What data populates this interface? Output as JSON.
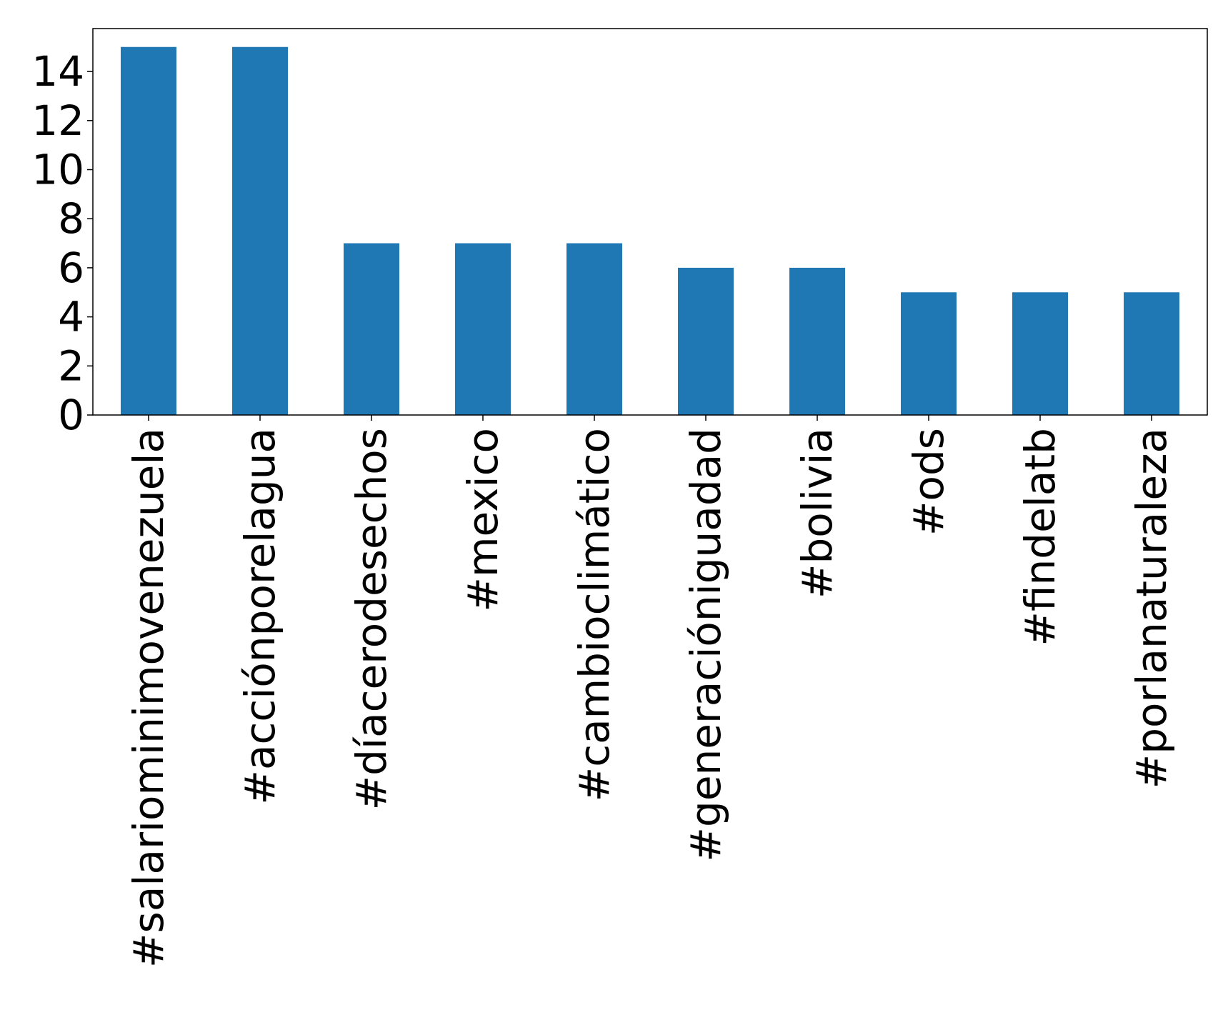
{
  "chart_data": {
    "type": "bar",
    "categories": [
      "#salariominimovenezuela",
      "#acciónporelagua",
      "#díacerodesechos",
      "#mexico",
      "#cambioclimático",
      "#generacióniguadad",
      "#bolivia",
      "#ods",
      "#findelatb",
      "#porlanaturaleza"
    ],
    "values": [
      15,
      15,
      7,
      7,
      7,
      6,
      6,
      5,
      5,
      5
    ],
    "title": "",
    "xlabel": "",
    "ylabel": "",
    "ylim": [
      0,
      15.75
    ],
    "yticks": [
      "0",
      "2",
      "4",
      "6",
      "8",
      "10",
      "12",
      "14"
    ],
    "bar_color": "#1f77b4",
    "grid": false,
    "legend": "none"
  }
}
